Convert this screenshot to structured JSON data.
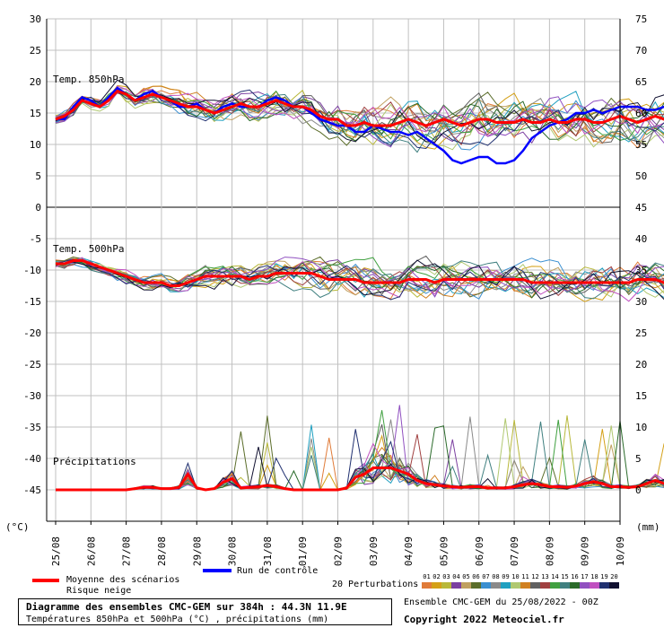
{
  "chart_data": {
    "type": "line",
    "title": "Diagramme des ensembles CMC-GEM sur 384h : 44.3N 11.9E",
    "subtitle": "Températures 850hPa et 500hPa (°C) , précipitations (mm)",
    "left_axis": {
      "unit_label": "(°C)",
      "ticks": [
        30,
        25,
        20,
        15,
        10,
        5,
        0,
        -5,
        -10,
        -15,
        -20,
        -25,
        -30,
        -35,
        -40,
        -45
      ],
      "ylim": [
        -50,
        30
      ]
    },
    "right_axis": {
      "unit_label": "(mm)",
      "ticks": [
        75,
        70,
        65,
        60,
        55,
        50,
        45,
        40,
        35,
        30,
        25,
        20,
        15,
        10,
        5,
        0
      ],
      "ylim": [
        -5,
        75
      ]
    },
    "x_tick_labels": [
      "25/08",
      "26/08",
      "27/08",
      "28/08",
      "29/08",
      "30/08",
      "31/08",
      "01/09",
      "02/09",
      "03/09",
      "04/09",
      "05/09",
      "06/09",
      "07/09",
      "08/09",
      "09/09",
      "10/09"
    ],
    "panel_labels": {
      "t850": "Temp. 850hPa",
      "t500": "Temp. 500hPa",
      "precip": "Précipitations"
    },
    "steps_per_day": 4,
    "t850": {
      "mean": [
        14,
        14.5,
        15.5,
        17,
        16.5,
        16,
        17,
        18.5,
        18,
        17,
        17.5,
        18,
        17.5,
        17,
        16.5,
        16,
        16,
        15.5,
        15,
        15.5,
        16,
        16.5,
        16,
        16,
        16.5,
        17,
        16.5,
        16,
        16,
        15.5,
        14.5,
        14,
        14,
        13,
        13,
        13.5,
        13,
        13,
        13,
        13.5,
        14,
        13.5,
        13,
        13.5,
        14,
        13.5,
        13,
        13.5,
        14,
        14,
        13.5,
        13.5,
        13.5,
        14,
        13.5,
        13.5,
        14,
        13.5,
        13.5,
        14,
        14,
        13.5,
        13.5,
        14,
        14.5,
        14,
        13.5,
        14,
        14.5,
        14,
        14,
        13.5,
        13.5
      ],
      "control": [
        14,
        14,
        16,
        17.5,
        17,
        16,
        17.5,
        19,
        18,
        17,
        18,
        18.5,
        17.5,
        17,
        16,
        16,
        16.5,
        15.5,
        15,
        16,
        16.5,
        16,
        16,
        16,
        17,
        17.5,
        17,
        16,
        16,
        15,
        14,
        13.5,
        13,
        13,
        12,
        12,
        13,
        12.5,
        12,
        12,
        11.5,
        12,
        11,
        10,
        9,
        7.5,
        7,
        7.5,
        8,
        8,
        7,
        7,
        7.5,
        9,
        11,
        12,
        13,
        13.5,
        14,
        15,
        15,
        15.5,
        15,
        15.5,
        16,
        16,
        16,
        15.5,
        15.5,
        16,
        16.5,
        17.5,
        18.5
      ]
    },
    "t500": {
      "mean": [
        -9,
        -9,
        -8.5,
        -8.5,
        -9,
        -9.5,
        -10,
        -10.5,
        -11,
        -11.5,
        -12,
        -12,
        -12,
        -12.5,
        -12.5,
        -12,
        -11.5,
        -11,
        -11,
        -11,
        -11,
        -11,
        -11.5,
        -11,
        -11,
        -10.5,
        -10.5,
        -10.5,
        -10.5,
        -10.5,
        -11,
        -11.5,
        -11.5,
        -11.5,
        -11.5,
        -12,
        -12,
        -12,
        -12,
        -12,
        -11.5,
        -11.5,
        -11.5,
        -12,
        -11.5,
        -11.5,
        -11.5,
        -11.5,
        -11.5,
        -11.5,
        -11.5,
        -11.5,
        -11.5,
        -11.5,
        -12,
        -12,
        -12,
        -12,
        -12,
        -12,
        -12,
        -12,
        -12,
        -12,
        -12,
        -12,
        -11.5,
        -11.5,
        -11.5,
        -12,
        -12,
        -12.5,
        -12.5
      ]
    },
    "precip": {
      "mean": [
        0,
        0,
        0,
        0,
        0,
        0,
        0,
        0,
        0,
        0.2,
        0.4,
        0.4,
        0.2,
        0.2,
        0.4,
        2.5,
        0.3,
        0,
        0.2,
        1.2,
        1.8,
        0.3,
        0.4,
        0.5,
        0.7,
        0.5,
        0.2,
        0,
        0,
        0,
        0,
        0,
        0,
        0.3,
        2,
        2.5,
        3.5,
        3.5,
        3.5,
        3,
        2.5,
        1.5,
        1,
        0.8,
        0.6,
        0.5,
        0.4,
        0.5,
        0.5,
        0.3,
        0.3,
        0.3,
        0.5,
        0.8,
        1,
        0.8,
        0.5,
        0.5,
        0.4,
        0.6,
        1,
        1.3,
        1,
        0.5,
        0.5,
        0.4,
        0.5,
        1,
        1.5,
        1,
        0.3,
        0.2,
        0.2
      ]
    },
    "legend": {
      "mean_label": "Moyenne des scénarios",
      "snow_label": "Risque neige",
      "control_label": "Run de contrôle",
      "perturbations_label": "20 Perturbations",
      "perturbation_numbers": [
        "01",
        "02",
        "03",
        "04",
        "05",
        "06",
        "07",
        "08",
        "09",
        "10",
        "11",
        "12",
        "13",
        "14",
        "15",
        "16",
        "17",
        "18",
        "19",
        "20"
      ],
      "perturbation_colors": [
        "#e07b39",
        "#d4a017",
        "#b8b83a",
        "#7b3fa0",
        "#c0a060",
        "#5b6d2a",
        "#3a8fd0",
        "#8a8a8a",
        "#20a0c0",
        "#b0c870",
        "#d08020",
        "#606060",
        "#a04040",
        "#40a040",
        "#408080",
        "#2a6a2a",
        "#9050c0",
        "#c050c0",
        "#203070",
        "#101030"
      ]
    },
    "run_info": "Ensemble CMC-GEM du 25/08/2022 - 00Z",
    "copyright": "Copyright 2022 Meteociel.fr",
    "colors": {
      "mean": "#ff0000",
      "control": "#0000ff",
      "grid": "#c0c0c0"
    }
  }
}
